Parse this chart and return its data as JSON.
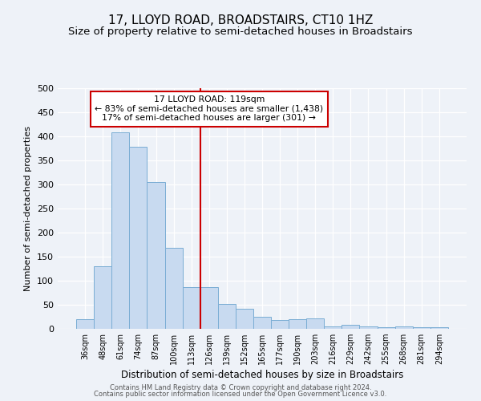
{
  "title1": "17, LLOYD ROAD, BROADSTAIRS, CT10 1HZ",
  "title2": "Size of property relative to semi-detached houses in Broadstairs",
  "xlabel": "Distribution of semi-detached houses by size in Broadstairs",
  "ylabel": "Number of semi-detached properties",
  "categories": [
    "36sqm",
    "48sqm",
    "61sqm",
    "74sqm",
    "87sqm",
    "100sqm",
    "113sqm",
    "126sqm",
    "139sqm",
    "152sqm",
    "165sqm",
    "177sqm",
    "190sqm",
    "203sqm",
    "216sqm",
    "229sqm",
    "242sqm",
    "255sqm",
    "268sqm",
    "281sqm",
    "294sqm"
  ],
  "values": [
    20,
    130,
    408,
    378,
    305,
    168,
    87,
    87,
    52,
    42,
    25,
    18,
    20,
    21,
    5,
    8,
    5,
    3,
    5,
    3,
    3
  ],
  "bar_color": "#c8daf0",
  "bar_edge_color": "#7aadd4",
  "vline_position": 6.5,
  "vline_color": "#cc0000",
  "annotation_text": "17 LLOYD ROAD: 119sqm\n← 83% of semi-detached houses are smaller (1,438)\n17% of semi-detached houses are larger (301) →",
  "annotation_box_color": "#ffffff",
  "annotation_box_edge": "#cc0000",
  "footer1": "Contains HM Land Registry data © Crown copyright and database right 2024.",
  "footer2": "Contains public sector information licensed under the Open Government Licence v3.0.",
  "ylim": [
    0,
    500
  ],
  "yticks": [
    0,
    50,
    100,
    150,
    200,
    250,
    300,
    350,
    400,
    450,
    500
  ],
  "bg_color": "#eef2f8",
  "grid_color": "#ffffff",
  "title1_fontsize": 11,
  "title2_fontsize": 9.5,
  "title1_weight": "normal"
}
